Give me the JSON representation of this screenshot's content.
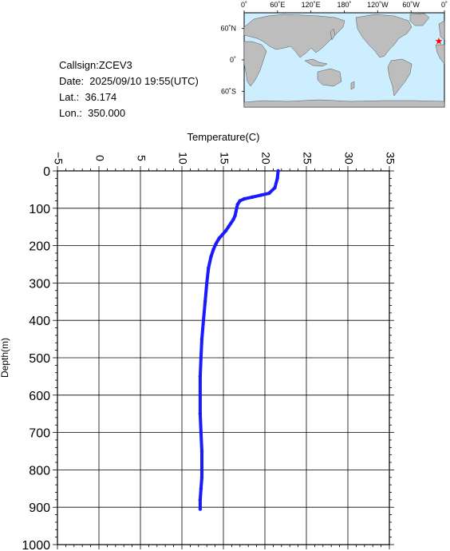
{
  "info": {
    "callsign": "Callsign:ZCEV3",
    "date": "Date:  2025/09/10 19:55(UTC)",
    "lat": "Lat.:  36.174",
    "lon": "Lon.:  350.000"
  },
  "map": {
    "lon_labels": [
      "0˚",
      "60˚E",
      "120˚E",
      "180˚",
      "120˚W",
      "60˚W",
      "0˚"
    ],
    "lat_labels": [
      "60˚N",
      "0˚",
      "60˚S"
    ],
    "ocean_color": "#cceeff",
    "land_color": "#bdbdbd",
    "marker_color": "#ff0000",
    "marker": {
      "lon": 350.0,
      "lat": 36.174
    }
  },
  "chart_data": {
    "type": "line",
    "xlabel": "Temperature(C)",
    "ylabel": "Depth(m)",
    "xlim": [
      -5,
      35
    ],
    "ylim": [
      0,
      1000
    ],
    "x_ticks": [
      "−5",
      "0",
      "5",
      "10",
      "15",
      "20",
      "25",
      "30",
      "35"
    ],
    "y_ticks": [
      "0",
      "100",
      "200",
      "300",
      "400",
      "500",
      "600",
      "700",
      "800",
      "900",
      "1000"
    ],
    "grid": true,
    "series_color": "#1a1aff",
    "series": [
      {
        "x": [
          21.6,
          21.5,
          21.2,
          20.5,
          19.5,
          18.5,
          17.5,
          17.0,
          16.7,
          16.6,
          16.5,
          16.4,
          16.2,
          15.9,
          15.6,
          15.3,
          14.9,
          14.5,
          14.1,
          13.8,
          13.5,
          13.2,
          13.0,
          12.8,
          12.6,
          12.4,
          12.3,
          12.2,
          12.2,
          12.2,
          12.3,
          12.4,
          12.4,
          12.4,
          12.3,
          12.2,
          12.2
        ],
        "y": [
          0,
          20,
          45,
          60,
          65,
          70,
          75,
          80,
          90,
          100,
          110,
          120,
          130,
          140,
          150,
          160,
          170,
          180,
          195,
          210,
          230,
          260,
          300,
          350,
          400,
          450,
          500,
          550,
          600,
          650,
          700,
          750,
          800,
          820,
          850,
          880,
          905
        ]
      }
    ]
  }
}
